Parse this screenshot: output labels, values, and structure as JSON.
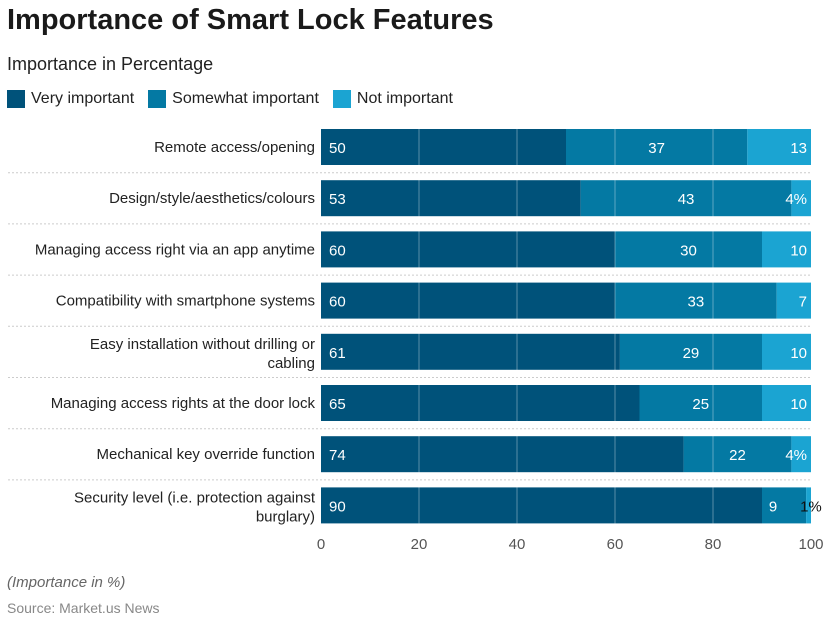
{
  "title": "Importance of Smart Lock Features",
  "subtitle": "Importance in Percentage",
  "note": "(Importance in %)",
  "source": "Source: Market.us News",
  "chart_data": {
    "type": "bar",
    "orientation": "horizontal",
    "stacked": true,
    "categories": [
      "Remote access/opening",
      "Design/style/aesthetics/colours",
      "Managing access right via an app anytime",
      "Compatibility with smartphone systems",
      "Easy installation without drilling or cabling",
      "Managing access rights at the door lock",
      "Mechanical key override function",
      "Security level (i.e. protection against burglary)"
    ],
    "series": [
      {
        "name": "Very important",
        "color": "#00527a",
        "values": [
          50,
          53,
          60,
          60,
          61,
          65,
          74,
          90
        ],
        "labels": [
          "50",
          "53",
          "60",
          "60",
          "61",
          "65",
          "74",
          "90"
        ]
      },
      {
        "name": "Somewhat important",
        "color": "#0479a3",
        "values": [
          37,
          43,
          30,
          33,
          29,
          25,
          22,
          9
        ],
        "labels": [
          "37",
          "43",
          "30",
          "33",
          "29",
          "25",
          "22",
          "9"
        ]
      },
      {
        "name": "Not important",
        "color": "#1ba4d2",
        "values": [
          13,
          4,
          10,
          7,
          10,
          10,
          4,
          1
        ],
        "labels": [
          "13",
          "4%",
          "10",
          "7",
          "10",
          "10",
          "4%",
          "1%"
        ]
      }
    ],
    "xlim": [
      0,
      100
    ],
    "xticks": [
      "0",
      "20",
      "40",
      "60",
      "80",
      "100"
    ],
    "grid": true,
    "legend": "top-left"
  }
}
